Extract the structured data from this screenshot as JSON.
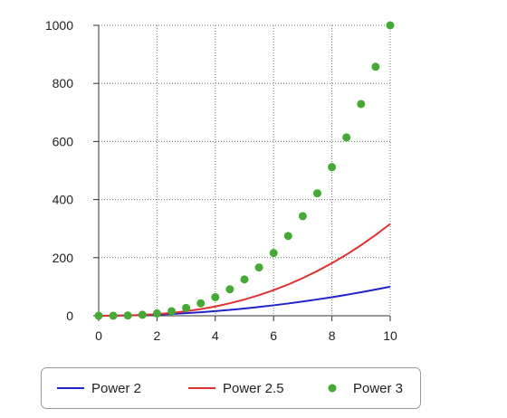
{
  "chart_data": {
    "type": "line",
    "title": "",
    "xlabel": "",
    "ylabel": "",
    "xlim": [
      0,
      10
    ],
    "ylim": [
      0,
      1000
    ],
    "x_ticks": [
      "0",
      "2",
      "4",
      "6",
      "8",
      "10"
    ],
    "y_ticks": [
      "0",
      "200",
      "400",
      "600",
      "800",
      "1000"
    ],
    "grid": true,
    "legend_position": "bottom",
    "series": [
      {
        "name": "Power 2",
        "style": "line",
        "color": "#2222cc",
        "x": [
          0,
          0.5,
          1,
          1.5,
          2,
          2.5,
          3,
          3.5,
          4,
          4.5,
          5,
          5.5,
          6,
          6.5,
          7,
          7.5,
          8,
          8.5,
          9,
          9.5,
          10
        ],
        "y": [
          0,
          0.25,
          1,
          2.25,
          4,
          6.25,
          9,
          12.25,
          16,
          20.25,
          25,
          30.25,
          36,
          42.25,
          49,
          56.25,
          64,
          72.25,
          81,
          90.25,
          100
        ]
      },
      {
        "name": "Power 2.5",
        "style": "line",
        "color": "#dd3333",
        "x": [
          0,
          0.5,
          1,
          1.5,
          2,
          2.5,
          3,
          3.5,
          4,
          4.5,
          5,
          5.5,
          6,
          6.5,
          7,
          7.5,
          8,
          8.5,
          9,
          9.5,
          10
        ],
        "y": [
          0,
          0.18,
          1,
          2.76,
          5.66,
          9.88,
          15.59,
          22.92,
          32,
          42.96,
          55.9,
          70.94,
          88.18,
          107.72,
          129.64,
          154.05,
          181.02,
          210.64,
          243,
          278.17,
          316.23
        ]
      },
      {
        "name": "Power 3",
        "style": "scatter",
        "color": "#44aa33",
        "x": [
          0,
          0.5,
          1,
          1.5,
          2,
          2.5,
          3,
          3.5,
          4,
          4.5,
          5,
          5.5,
          6,
          6.5,
          7,
          7.5,
          8,
          8.5,
          9,
          9.5,
          10
        ],
        "y": [
          0,
          0.125,
          1,
          3.375,
          8,
          15.625,
          27,
          42.875,
          64,
          91.125,
          125,
          166.375,
          216,
          274.625,
          343,
          421.875,
          512,
          614.125,
          729,
          857.375,
          1000
        ]
      }
    ]
  }
}
